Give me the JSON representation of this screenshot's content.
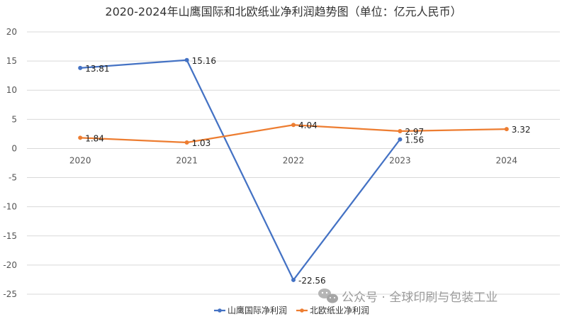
{
  "chart_data": {
    "type": "line",
    "title": "2020-2024年山鹰国际和北欧纸业净利润趋势图（单位：亿元人民币）",
    "categories": [
      "2020",
      "2021",
      "2022",
      "2023",
      "2024"
    ],
    "ylim": [
      -25,
      20
    ],
    "yticks": [
      20,
      15,
      10,
      5,
      0,
      -5,
      -10,
      -15,
      -20,
      -25
    ],
    "grid": true,
    "legend_position": "bottom",
    "series": [
      {
        "name": "山鹰国际净利润",
        "color": "#4472C4",
        "values": [
          13.81,
          15.16,
          -22.56,
          1.56,
          null
        ],
        "labels": [
          "13.81",
          "15.16",
          "-22.56",
          "1.56",
          ""
        ]
      },
      {
        "name": "北欧纸业净利润",
        "color": "#ED7D31",
        "values": [
          1.84,
          1.03,
          4.04,
          2.97,
          3.32
        ],
        "labels": [
          "1.84",
          "1.03",
          "4.04",
          "2.97",
          "3.32"
        ]
      }
    ]
  },
  "watermark": {
    "text": "公众号 · 全球印刷与包装工业",
    "icon": "wechat-icon"
  }
}
